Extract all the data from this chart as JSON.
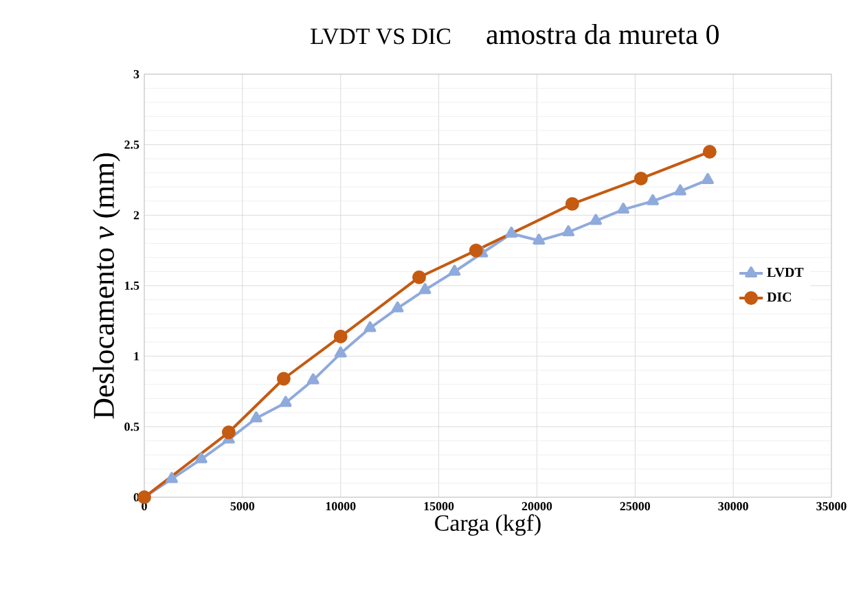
{
  "chart_data": {
    "type": "line",
    "title": "LVDT VS DIC",
    "subtitle": "amostra da mureta 0",
    "xlabel": "Carga (kgf)",
    "ylabel": "Deslocamento *v* (mm)",
    "xlim": [
      0,
      35000
    ],
    "xticks": [
      0,
      5000,
      10000,
      15000,
      20000,
      25000,
      30000,
      35000
    ],
    "ylim": [
      0,
      3
    ],
    "yticks": [
      0,
      0.5,
      1,
      1.5,
      2,
      2.5,
      3
    ],
    "grid": true,
    "legend": "right",
    "series": [
      {
        "name": "LVDT",
        "color": "#8faadc",
        "marker": "triangle",
        "x": [
          0,
          1400,
          2900,
          4300,
          5700,
          7200,
          8600,
          10000,
          11500,
          12900,
          14300,
          15800,
          17200,
          18700,
          20100,
          21600,
          23000,
          24400,
          25900,
          27300,
          28700
        ],
        "values": [
          0,
          0.13,
          0.27,
          0.41,
          0.56,
          0.67,
          0.83,
          1.02,
          1.2,
          1.34,
          1.47,
          1.6,
          1.73,
          1.87,
          1.82,
          1.88,
          1.96,
          2.04,
          2.1,
          2.17,
          2.25
        ]
      },
      {
        "name": "DIC",
        "color": "#c55a11",
        "marker": "circle",
        "x": [
          0,
          4300,
          7100,
          10000,
          14000,
          16900,
          21800,
          25300,
          28800
        ],
        "values": [
          0,
          0.46,
          0.84,
          1.14,
          1.56,
          1.75,
          2.08,
          2.26,
          2.45
        ]
      }
    ]
  }
}
